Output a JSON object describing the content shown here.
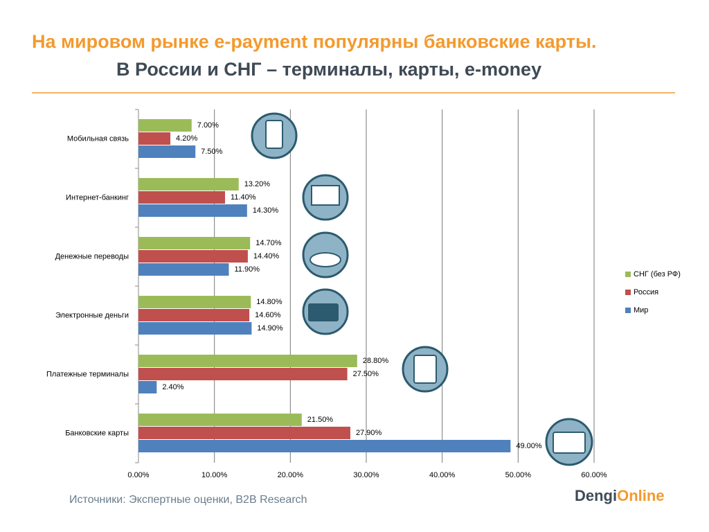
{
  "chart_data": {
    "type": "barh",
    "title": "На мировом рынке e-payment популярны банковские карты.",
    "subtitle": "В России и СНГ – терминалы, карты, e-money",
    "source": "Источники: Экспертные оценки, B2B Research",
    "logo": [
      "Dengi",
      "Online"
    ],
    "categories": [
      "Мобильная связь",
      "Интернет-банкинг",
      "Денежные переводы",
      "Электронные деньги",
      "Платежные терминалы",
      "Банковские карты"
    ],
    "series": [
      {
        "name": "СНГ (без РФ)",
        "color": "#9bbb59",
        "values": [
          7,
          13.2,
          14.7,
          14.8,
          28.8,
          21.5
        ],
        "value_labels": [
          "7.00%",
          "13.20%",
          "14.70%",
          "14.80%",
          "28.80%",
          "21.50%"
        ]
      },
      {
        "name": "Россия",
        "color": "#c0504d",
        "values": [
          4.2,
          11.4,
          14.4,
          14.6,
          27.5,
          27.9
        ],
        "value_labels": [
          "4.20%",
          "11.40%",
          "14.40%",
          "14.60%",
          "27.50%",
          "27.90%"
        ]
      },
      {
        "name": "Мир",
        "color": "#4f81bd",
        "values": [
          7.5,
          14.3,
          11.9,
          14.9,
          2.4,
          49
        ],
        "value_labels": [
          "7.50%",
          "14.30%",
          "11.90%",
          "14.90%",
          "2.40%",
          "49.00%"
        ]
      }
    ],
    "xlim": [
      0,
      60
    ],
    "xticks": [
      {
        "value": 0,
        "label": "0.00%"
      },
      {
        "value": 10,
        "label": "10.00%"
      },
      {
        "value": 20,
        "label": "20.00%"
      },
      {
        "value": 30,
        "label": "30.00%"
      },
      {
        "value": 40,
        "label": "40.00%"
      },
      {
        "value": 50,
        "label": "50.00%"
      },
      {
        "value": 60,
        "label": "60.00%"
      }
    ],
    "grid": true,
    "legend": "right"
  }
}
